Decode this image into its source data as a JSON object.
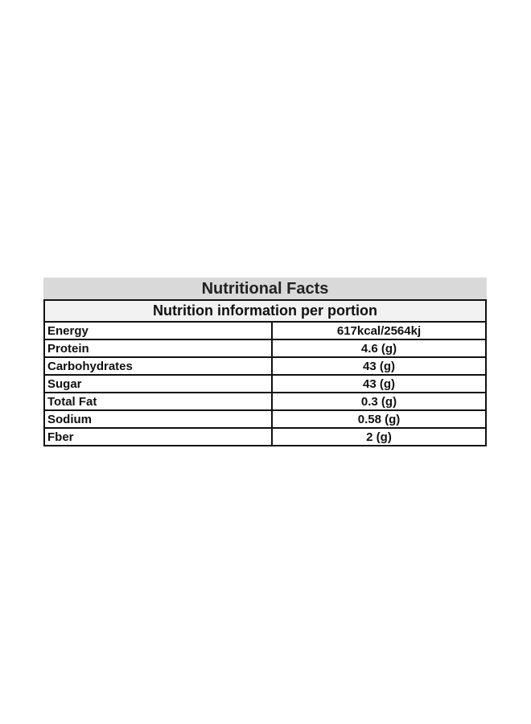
{
  "title": "Nutritional Facts",
  "subtitle": "Nutrition information per portion",
  "rows": [
    {
      "label": "Energy",
      "value": "617kcal/2564kj"
    },
    {
      "label": "Protein",
      "value": "4.6 (g)"
    },
    {
      "label": "Carbohydrates",
      "value": "43 (g)"
    },
    {
      "label": "Sugar",
      "value": "43 (g)"
    },
    {
      "label": "Total Fat",
      "value": "0.3 (g)"
    },
    {
      "label": "Sodium",
      "value": "0.58 (g)"
    },
    {
      "label": "Fber",
      "value": "2 (g)"
    }
  ],
  "colors": {
    "title_bg": "#d9d9d9",
    "subtitle_bg": "#f2f2f2",
    "border": "#111111"
  }
}
